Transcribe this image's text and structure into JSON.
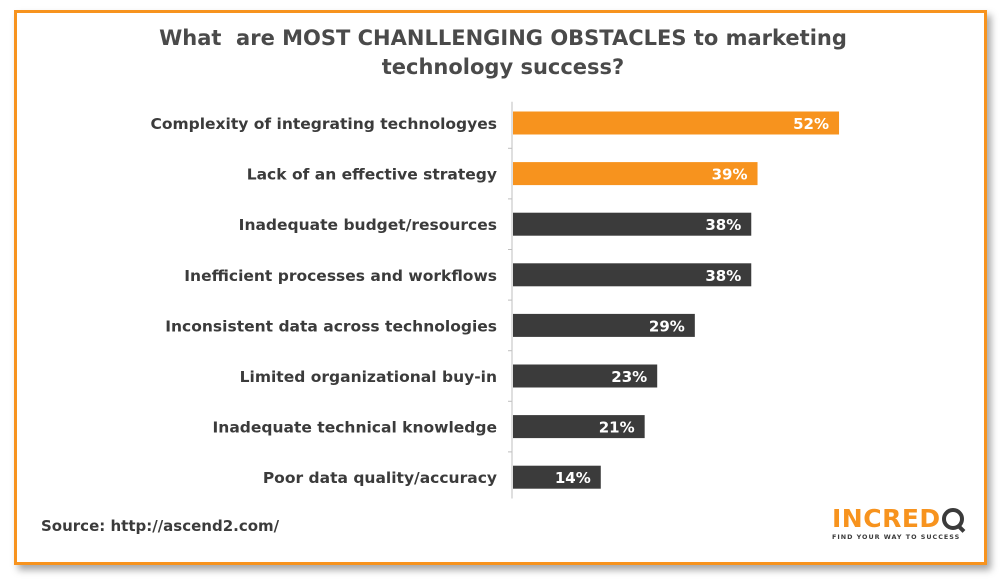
{
  "chart_data": {
    "type": "bar",
    "orientation": "horizontal",
    "title": "What  are MOST CHANLLENGING OBSTACLES to marketing\ntechnology success?",
    "categories": [
      "Complexity of integrating technologyes",
      "Lack of an effective strategy",
      "Inadequate budget/resources",
      "Inefficient processes and workflows",
      "Inconsistent data across technologies",
      "Limited organizational buy-in",
      "Inadequate technical knowledge",
      "Poor data quality/accuracy"
    ],
    "values": [
      52,
      39,
      38,
      38,
      29,
      23,
      21,
      14
    ],
    "value_labels": [
      "52%",
      "39%",
      "38%",
      "38%",
      "29%",
      "23%",
      "21%",
      "14%"
    ],
    "unit": "%",
    "highlighted": [
      true,
      true,
      false,
      false,
      false,
      false,
      false,
      false
    ],
    "xlim": [
      0,
      100
    ],
    "grid": false,
    "legend": "none",
    "colors": {
      "highlight": "#f7931e",
      "default": "#3b3b3b",
      "frame": "#f7931e",
      "axis": "#bfbfbf"
    }
  },
  "source": "Source: http://ascend2.com/",
  "logo": {
    "word": "INCRED",
    "tagline": "FIND YOUR WAY TO SUCCESS"
  }
}
